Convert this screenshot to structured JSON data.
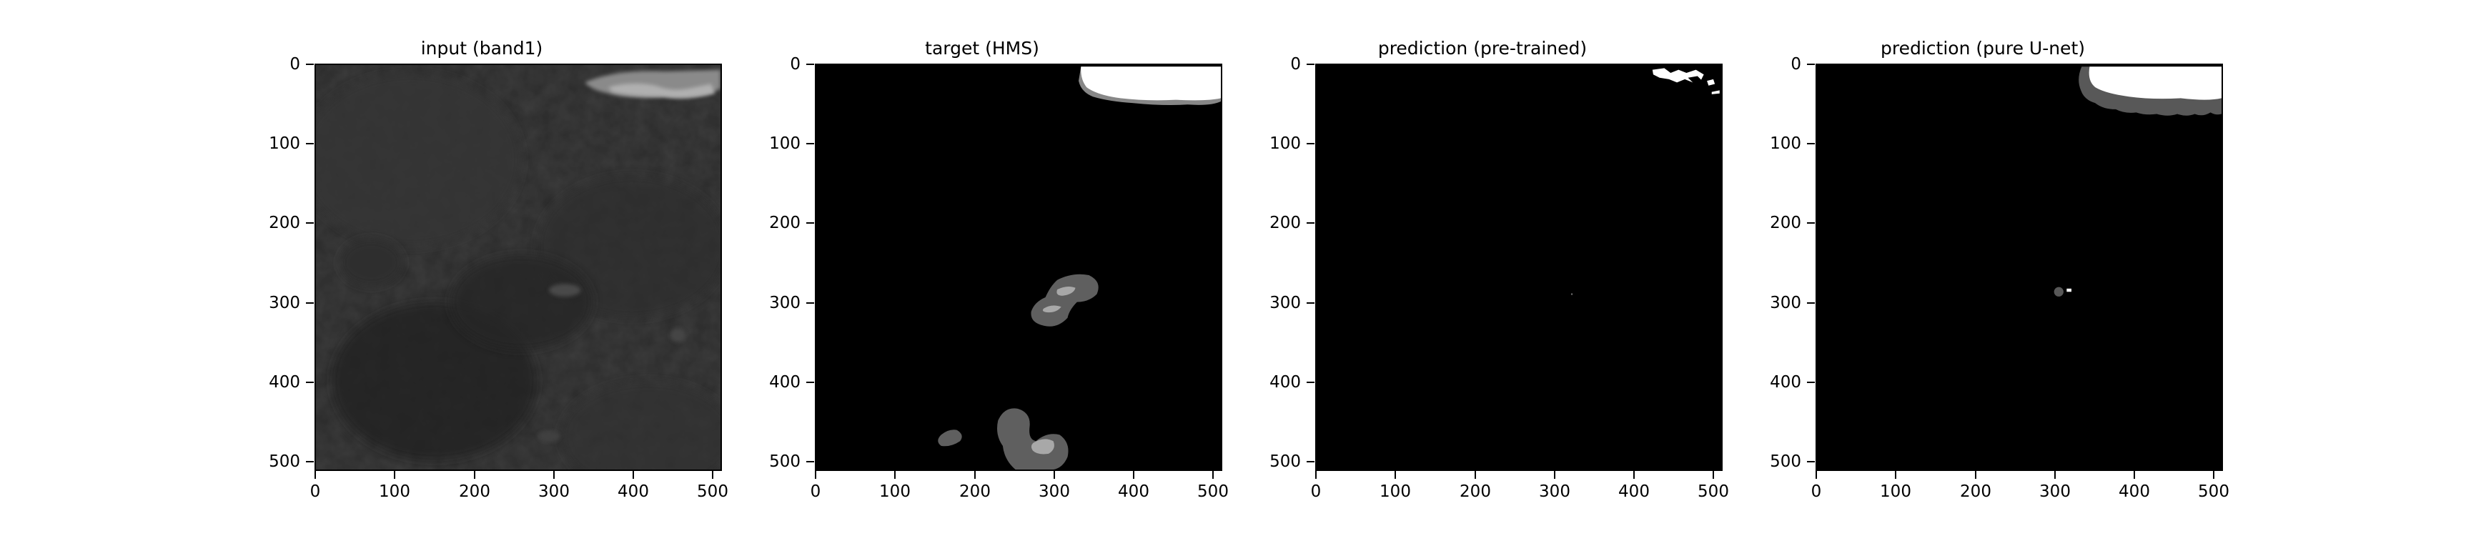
{
  "figure": {
    "ticks": [
      "0",
      "100",
      "200",
      "300",
      "400",
      "500"
    ],
    "panels": [
      {
        "title": "input (band1)",
        "content": "grayscale satellite image"
      },
      {
        "title": "target (HMS)",
        "content": "segmentation mask"
      },
      {
        "title": "prediction (pre-trained)",
        "content": "segmentation mask"
      },
      {
        "title": "prediction (pure U-net)",
        "content": "segmentation mask"
      }
    ]
  }
}
